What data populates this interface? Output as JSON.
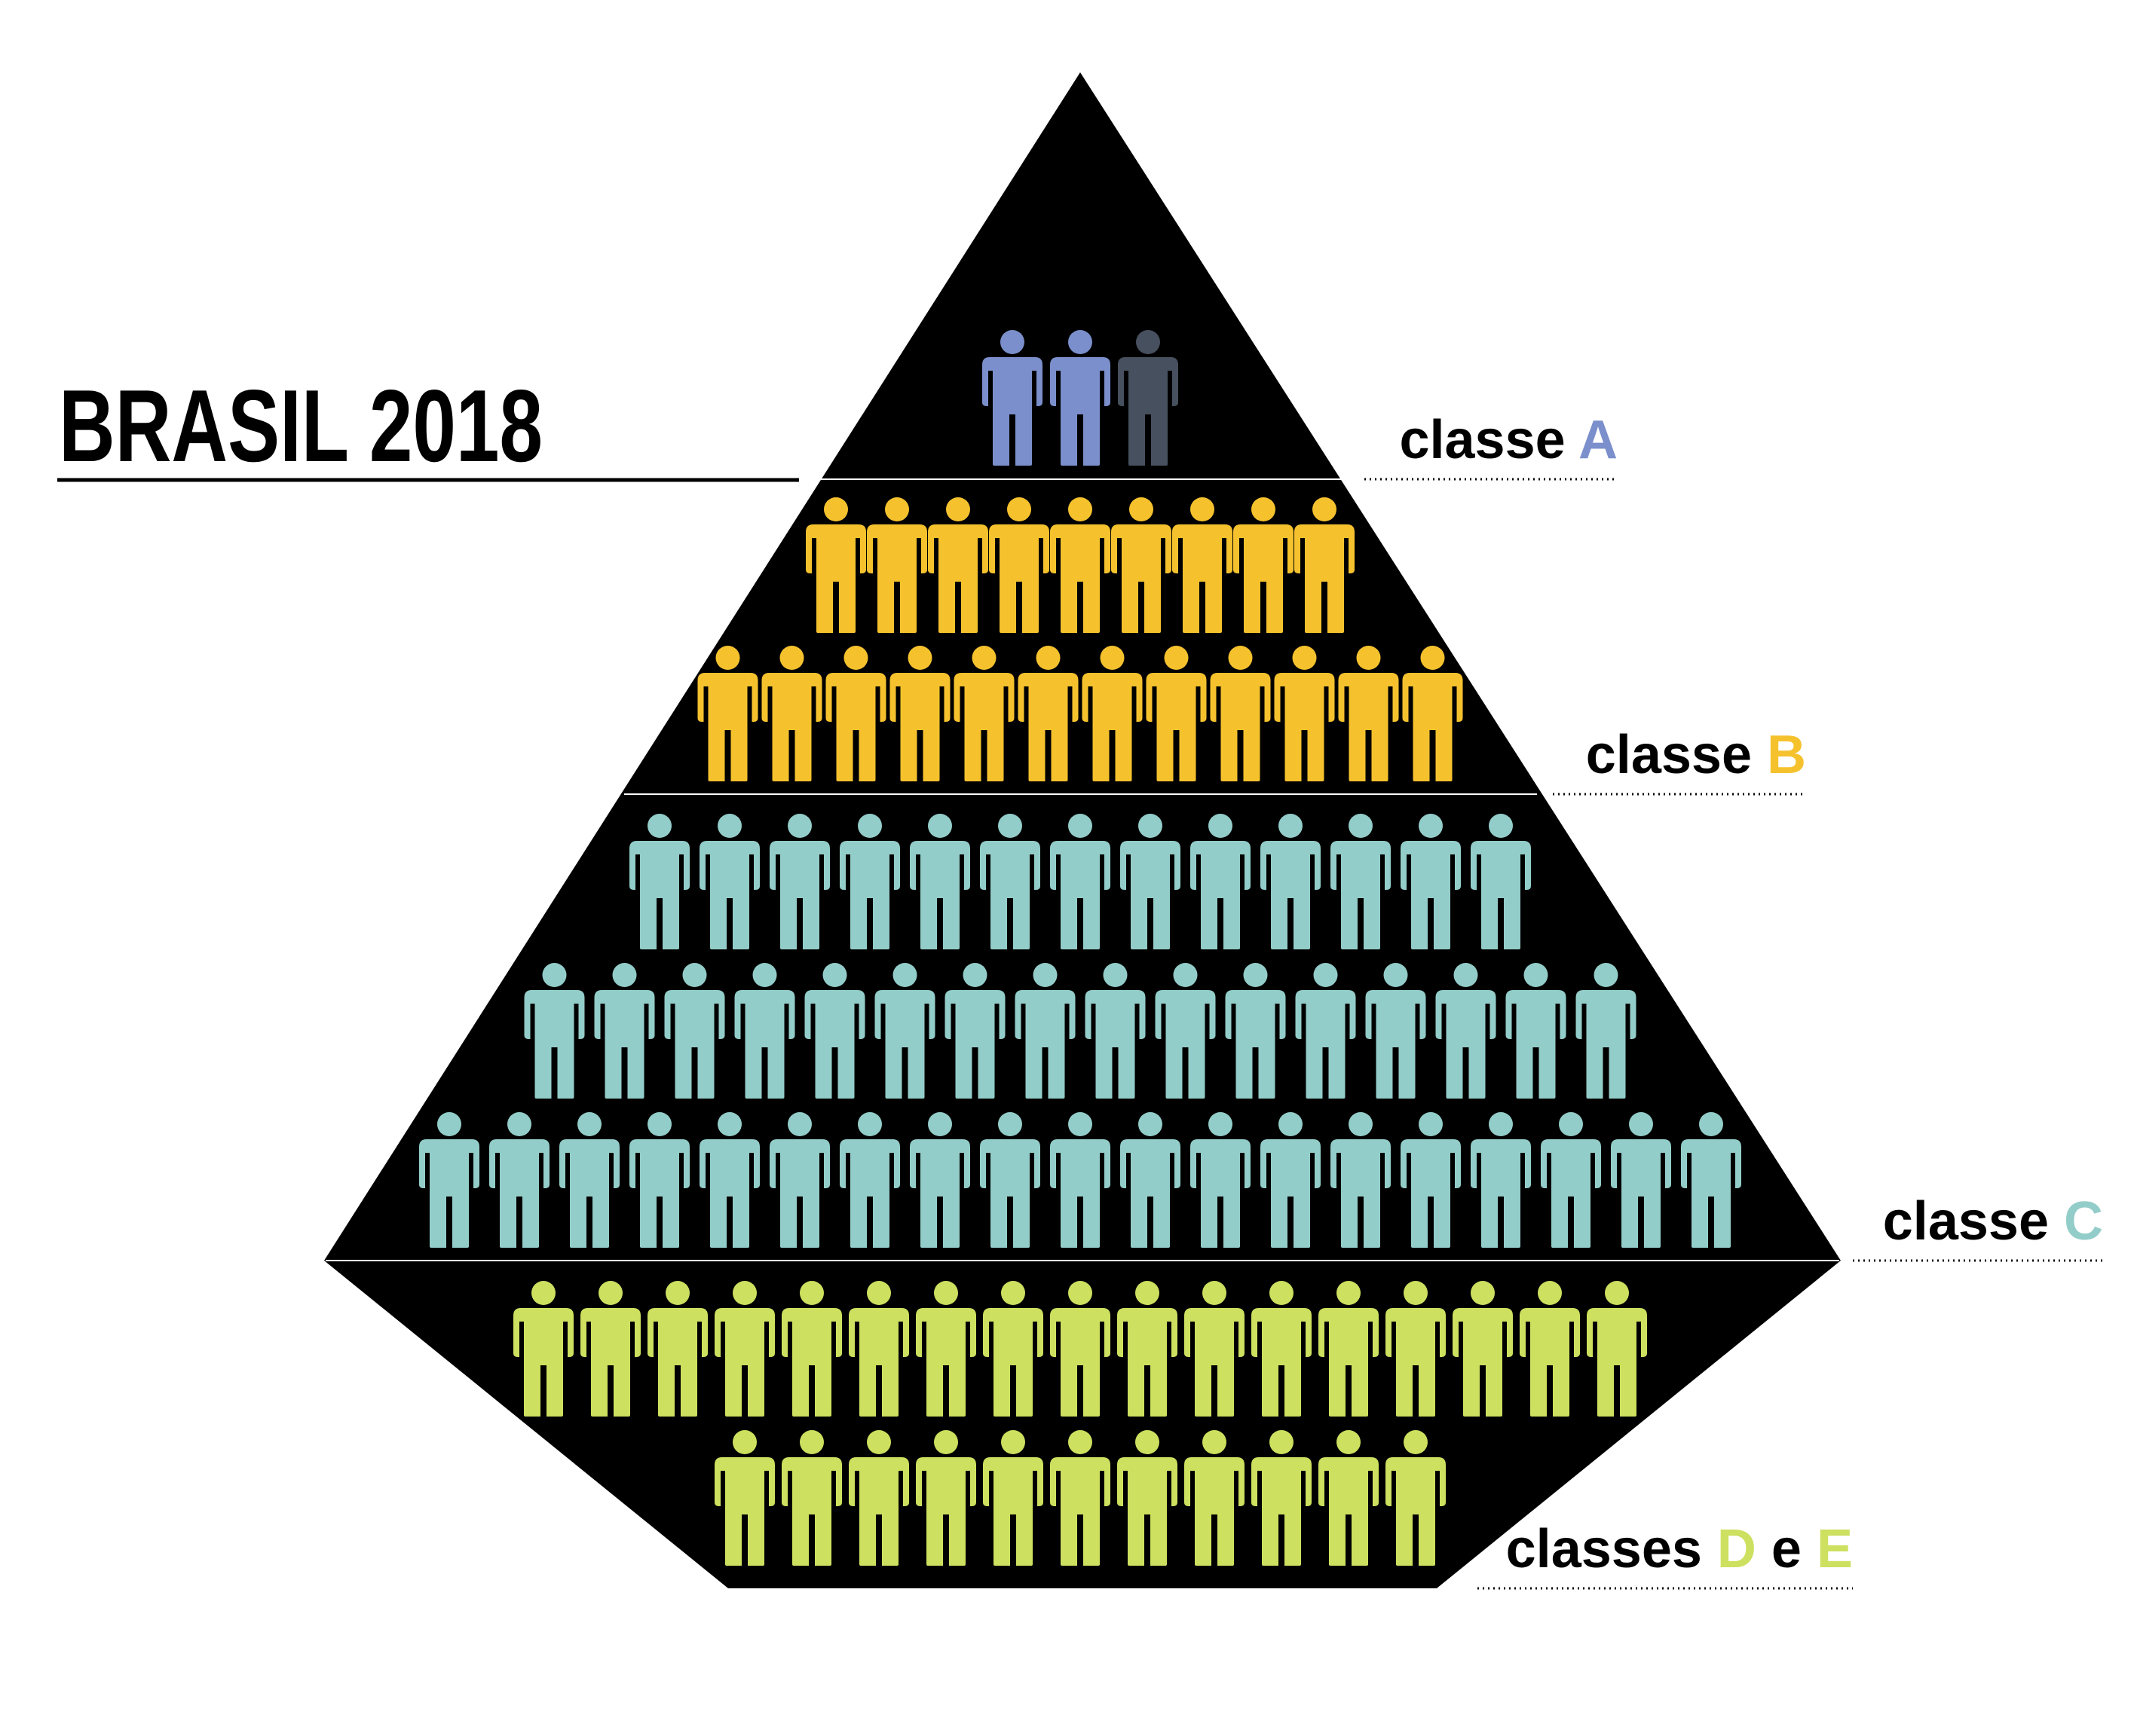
{
  "title": "BRASIL 2018",
  "colors": {
    "pyramid": "#000000",
    "class_a": "#7a8fcb",
    "class_a_dim": "#47505e",
    "class_b": "#f5c22e",
    "class_c": "#93cdc9",
    "class_de": "#cde05f",
    "label_text": "#000000"
  },
  "figure_icon": "person-icon",
  "classes": [
    {
      "id": "a",
      "label_prefix": "classe ",
      "letters": [
        "A"
      ],
      "rows": [
        2.3
      ],
      "color_key": "class_a"
    },
    {
      "id": "b",
      "label_prefix": "classe ",
      "letters": [
        "B"
      ],
      "rows": [
        9,
        12
      ],
      "color_key": "class_b"
    },
    {
      "id": "c",
      "label_prefix": "classe ",
      "letters": [
        "C"
      ],
      "rows": [
        13,
        16,
        19
      ],
      "color_key": "class_c"
    },
    {
      "id": "de",
      "label_prefix": "classes ",
      "letters": [
        "D",
        "E"
      ],
      "joiner": " e ",
      "rows": [
        17,
        11
      ],
      "color_key": "class_de"
    }
  ]
}
